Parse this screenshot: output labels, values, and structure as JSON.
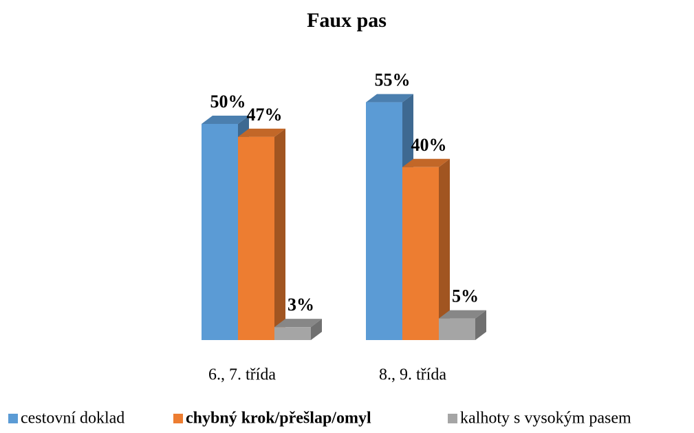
{
  "chart_data": {
    "type": "bar3d",
    "title": "Faux pas",
    "categories": [
      "6., 7. třída",
      "8., 9. třída"
    ],
    "series": [
      {
        "name": "cestovní doklad",
        "color": "#5b9bd5",
        "values": [
          50,
          55
        ],
        "value_labels": [
          "50%",
          "55%"
        ]
      },
      {
        "name": "chybný krok/přešlap/omyl",
        "color": "#ed7d31",
        "values": [
          47,
          40
        ],
        "value_labels": [
          "47%",
          "40%"
        ],
        "legend_bold": true
      },
      {
        "name": "kalhoty s vysokým pasem",
        "color": "#a5a5a5",
        "values": [
          3,
          5
        ],
        "value_labels": [
          "3%",
          "5%"
        ]
      }
    ],
    "legend": "bottom"
  }
}
